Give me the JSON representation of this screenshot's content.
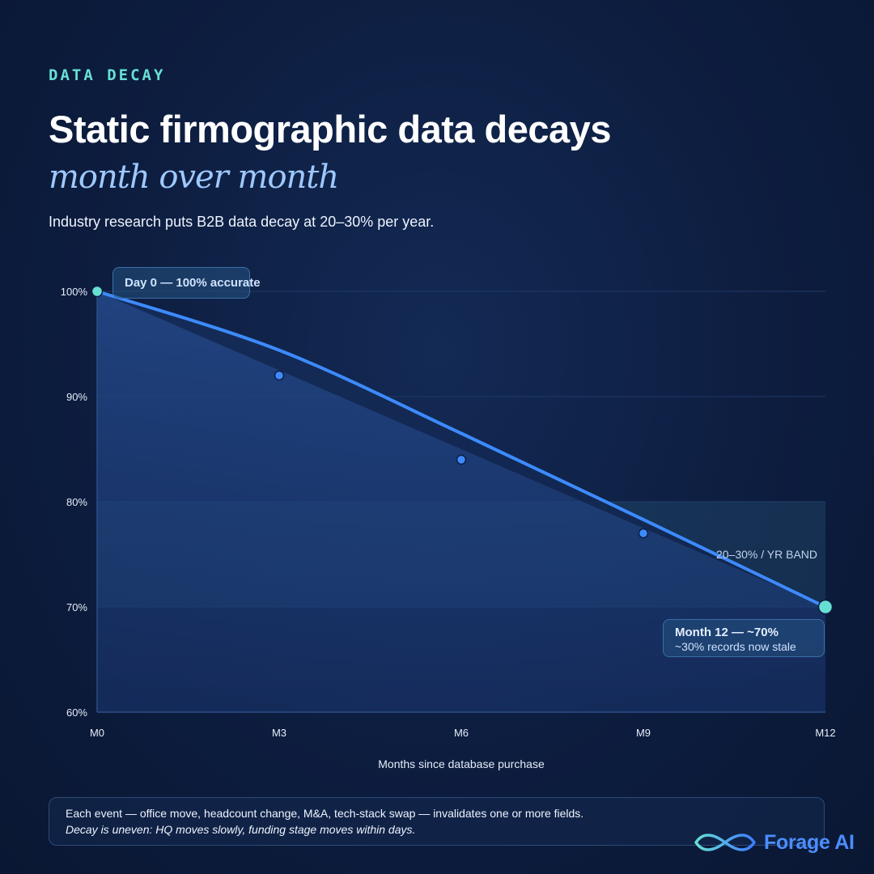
{
  "eyebrow": "DATA DECAY",
  "title": "Static firmographic data decays",
  "title_sub": "month over month",
  "subtitle": "Industry research puts B2B data decay at 20–30% per year.",
  "colors": {
    "background": "#0d1d3f",
    "accent_teal": "#67e0d4",
    "line_blue": "#3d8bff",
    "text_light_blue": "#9ec8ff"
  },
  "annotations": {
    "start": "Day 0 — 100% accurate",
    "end_title": "Month 12 — ~70%",
    "end_detail": "~30% records now stale"
  },
  "footer": {
    "line1": "Each event — office move, headcount change, M&A, tech-stack swap — invalidates one or more fields.",
    "line2": "Decay is uneven: HQ moves slowly, funding stage moves within days."
  },
  "logo": {
    "text": "Forage AI",
    "icon": "infinity-wave-icon"
  },
  "chart_data": {
    "type": "line",
    "title": "",
    "xlabel": "Months since database purchase",
    "ylabel": "",
    "x_ticks": [
      "M0",
      "M3",
      "M6",
      "M9",
      "M12"
    ],
    "y_ticks": [
      "60%",
      "70%",
      "80%",
      "90%",
      "100%"
    ],
    "xlim": [
      0,
      12
    ],
    "ylim": [
      60,
      100
    ],
    "series": [
      {
        "x": [
          0,
          12
        ],
        "values": [
          100,
          70
        ],
        "style": "smooth-curve-with-area-fill"
      },
      {
        "x": [
          3,
          6,
          9
        ],
        "values": [
          92,
          84,
          77
        ],
        "style": "markers"
      }
    ],
    "curve_shape": [
      {
        "x": 0,
        "y": 100
      },
      {
        "x": 3,
        "y": 94.4
      },
      {
        "x": 6,
        "y": 86.5
      },
      {
        "x": 9,
        "y": 78.3
      },
      {
        "x": 12,
        "y": 70
      }
    ],
    "endpoints": [
      {
        "x": 0,
        "y": 100,
        "label": "Day 0 — 100% accurate"
      },
      {
        "x": 12,
        "y": 70,
        "label": "Month 12 — ~70%"
      }
    ],
    "band": {
      "y_from": 70,
      "y_to": 80,
      "label": "20–30% / YR BAND"
    },
    "grid": true
  }
}
